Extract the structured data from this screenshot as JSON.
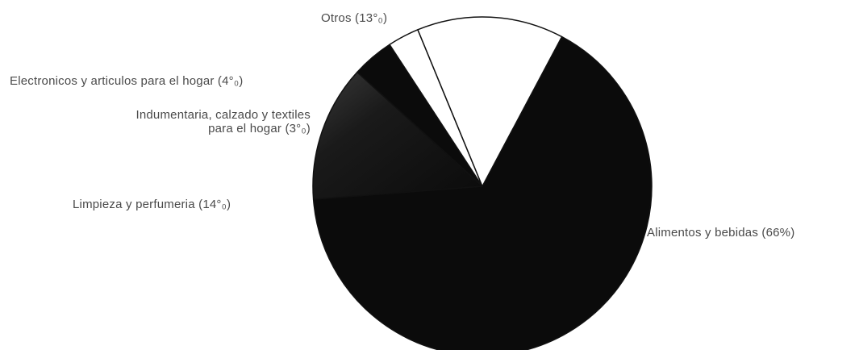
{
  "chart_data": {
    "type": "pie",
    "title": "",
    "slices": [
      {
        "label": "Alimentos y bebidas (66%)",
        "value": 66,
        "color": "#0b0b0b"
      },
      {
        "label": "Otros (13°₀)",
        "value": 13,
        "color": "#0b0b0b"
      },
      {
        "label": "Electronicos y articulos para el hogar (4°₀)",
        "value": 4,
        "color": "#0b0b0b"
      },
      {
        "label_lines": [
          "Indumentaria, calzado y textiles",
          "para el hogar (3°₀)"
        ],
        "value": 3,
        "color": "#ffffff"
      },
      {
        "label": "Limpieza y perfumeria (14°₀)",
        "value": 14,
        "color": "#ffffff"
      }
    ]
  }
}
